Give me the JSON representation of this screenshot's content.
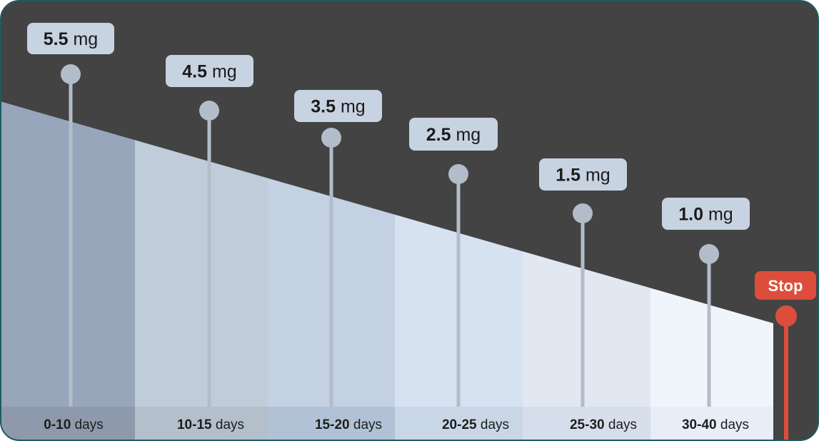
{
  "steps": [
    {
      "dose": "5.5",
      "unit": "mg",
      "range": "0-10",
      "range_unit": "days"
    },
    {
      "dose": "4.5",
      "unit": "mg",
      "range": "10-15",
      "range_unit": "days"
    },
    {
      "dose": "3.5",
      "unit": "mg",
      "range": "15-20",
      "range_unit": "days"
    },
    {
      "dose": "2.5",
      "unit": "mg",
      "range": "20-25",
      "range_unit": "days"
    },
    {
      "dose": "1.5",
      "unit": "mg",
      "range": "25-30",
      "range_unit": "days"
    },
    {
      "dose": "1.0",
      "unit": "mg",
      "range": "30-40",
      "range_unit": "days"
    }
  ],
  "stop": {
    "label": "Stop"
  },
  "colors": {
    "background": "#434343",
    "border": "#1e5c61",
    "bands": [
      "#97a6ba",
      "#c0ccd9",
      "#c3d1e2",
      "#d6e2f0",
      "#e2e8f2",
      "#f0f4fb"
    ],
    "footer": [
      "#8e9aab",
      "#b4bfcc",
      "#b1c1d6",
      "#c9d6e6",
      "#d6deeb",
      "#e8eef8"
    ],
    "bubble": "#c8d3e2",
    "pin": "#b3bdc9",
    "stop": "#dc4e3b"
  }
}
